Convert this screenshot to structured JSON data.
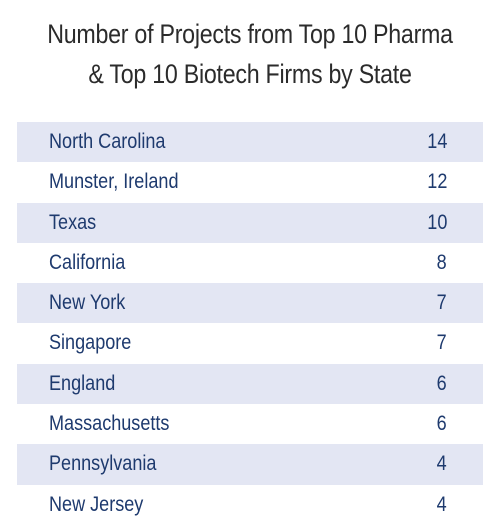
{
  "title_lines": [
    "Number of Projects from Top 10 Pharma",
    "& Top 10 Biotech Firms by State"
  ],
  "chart_data": {
    "type": "table",
    "title": "Number of Projects from Top 10 Pharma & Top 10 Biotech Firms by State",
    "rows": [
      {
        "label": "North Carolina",
        "value": 14
      },
      {
        "label": "Munster, Ireland",
        "value": 12
      },
      {
        "label": "Texas",
        "value": 10
      },
      {
        "label": "California",
        "value": 8
      },
      {
        "label": "New York",
        "value": 7
      },
      {
        "label": "Singapore",
        "value": 7
      },
      {
        "label": "England",
        "value": 6
      },
      {
        "label": "Massachusetts",
        "value": 6
      },
      {
        "label": "Pennsylvania",
        "value": 4
      },
      {
        "label": "New Jersey",
        "value": 4
      }
    ]
  },
  "colors": {
    "shaded_row": "#e3e6f3",
    "text": "#1e3a6e",
    "title": "#2b2b2b"
  }
}
